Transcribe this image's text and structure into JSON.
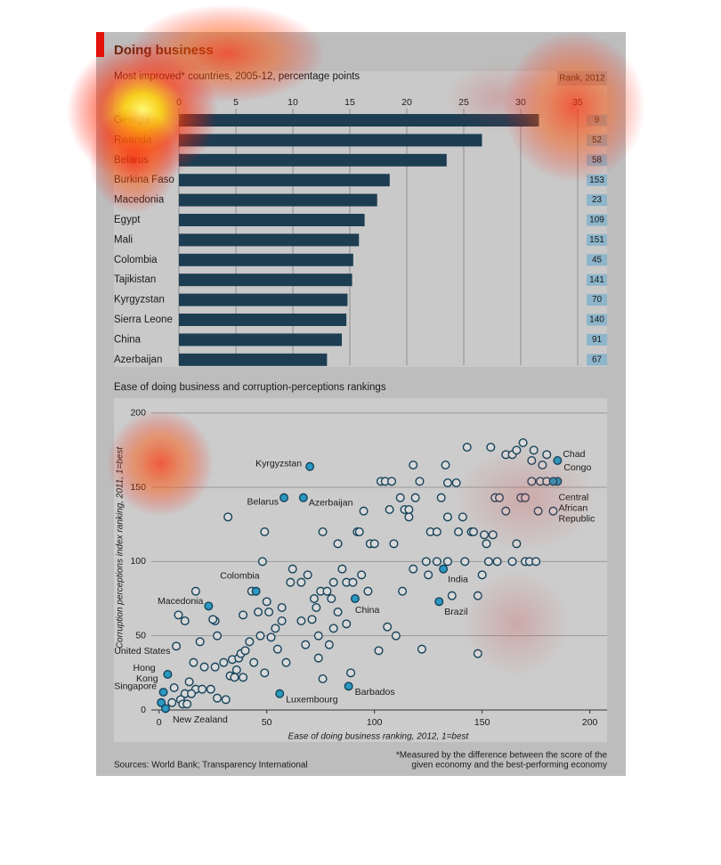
{
  "chart_data": [
    {
      "type": "bar",
      "horizontal": true,
      "title": "Doing business",
      "subtitle": "Most improved* countries, 2005-12, percentage points",
      "rank_header": "Rank, 2012",
      "categories": [
        "Georgia",
        "Rwanda",
        "Belarus",
        "Burkina Faso",
        "Macedonia",
        "Egypt",
        "Mali",
        "Colombia",
        "Tajikistan",
        "Kyrgyzstan",
        "Sierra Leone",
        "China",
        "Azerbaijan"
      ],
      "values": [
        31.6,
        26.6,
        23.5,
        18.5,
        17.4,
        16.3,
        15.8,
        15.3,
        15.2,
        14.8,
        14.7,
        14.3,
        13.0
      ],
      "ranks": [
        9,
        52,
        58,
        153,
        23,
        109,
        151,
        45,
        141,
        70,
        140,
        91,
        67
      ],
      "color": "#1c3d52",
      "rank_color": "#8db5cb",
      "xlim": [
        0,
        35
      ],
      "xticks": [
        0,
        5,
        10,
        15,
        20,
        25,
        30,
        35
      ],
      "grid": true
    },
    {
      "type": "scatter",
      "title": "Ease of doing business and corruption-perceptions rankings",
      "xlabel": "Ease of doing business ranking, 2012, 1=best",
      "ylabel": "Corruption perceptions index ranking, 2011, 1=best",
      "xlim": [
        -16,
        208
      ],
      "ylim": [
        -21,
        210
      ],
      "xticks": [
        0,
        50,
        100,
        150,
        200
      ],
      "yticks": [
        0,
        50,
        100,
        150,
        200
      ],
      "grid": true,
      "color": "#d9d9d9",
      "edge_color": "#16435a",
      "highlight_color": "#2a98c0",
      "x": [
        143,
        154,
        169,
        161,
        164,
        166,
        174,
        180,
        173,
        178,
        118,
        133,
        103,
        105,
        108,
        121,
        134,
        138,
        173,
        177,
        180,
        112,
        119,
        131,
        156,
        158,
        168,
        170,
        95,
        107,
        114,
        116,
        134,
        141,
        161,
        176,
        183,
        32,
        116,
        126,
        129,
        139,
        145,
        146,
        151,
        155,
        76,
        92,
        93,
        83,
        98,
        100,
        109,
        152,
        166,
        49,
        48,
        62,
        69,
        61,
        66,
        81,
        85,
        87,
        90,
        94,
        118,
        124,
        125,
        129,
        134,
        142,
        153,
        157,
        164,
        170,
        172,
        175,
        150,
        136,
        148,
        113,
        17,
        43,
        72,
        75,
        78,
        80,
        97,
        73,
        57,
        50,
        9,
        12,
        39,
        46,
        51,
        57,
        66,
        71,
        83,
        87,
        26,
        25,
        27,
        47,
        54,
        52,
        42,
        74,
        81,
        106,
        110,
        8,
        19,
        55,
        68,
        79,
        122,
        102,
        148,
        16,
        21,
        26,
        30,
        34,
        37,
        38,
        40,
        44,
        59,
        74,
        36,
        33,
        35,
        39,
        49,
        89,
        76,
        7,
        14,
        17,
        20,
        24,
        12,
        15,
        27,
        31,
        10,
        6,
        11,
        13
      ],
      "y": [
        177,
        177,
        180,
        172,
        172,
        175,
        175,
        172,
        168,
        165,
        165,
        165,
        154,
        154,
        154,
        154,
        153,
        153,
        154,
        154,
        154,
        143,
        143,
        143,
        143,
        143,
        143,
        143,
        134,
        135,
        135,
        135,
        130,
        130,
        134,
        134,
        134,
        130,
        130,
        120,
        120,
        120,
        120,
        120,
        118,
        118,
        120,
        120,
        120,
        112,
        112,
        112,
        112,
        112,
        112,
        120,
        100,
        95,
        91,
        86,
        86,
        86,
        95,
        86,
        86,
        91,
        95,
        100,
        91,
        100,
        100,
        100,
        100,
        100,
        100,
        100,
        100,
        100,
        91,
        77,
        77,
        80,
        80,
        80,
        75,
        80,
        80,
        75,
        80,
        69,
        69,
        73,
        64,
        60,
        64,
        66,
        66,
        60,
        60,
        61,
        66,
        58,
        60,
        61,
        50,
        50,
        55,
        49,
        46,
        50,
        55,
        56,
        50,
        43,
        46,
        41,
        44,
        44,
        41,
        40,
        38,
        32,
        29,
        29,
        32,
        34,
        35,
        38,
        40,
        32,
        32,
        35,
        27,
        23,
        22,
        22,
        25,
        25,
        21,
        15,
        19,
        14,
        14,
        14,
        11,
        11,
        8,
        7,
        7,
        5,
        4,
        4
      ],
      "labelled": {
        "labels": [
          "Kyrgyzstan",
          "Belarus",
          "Azerbaijan",
          "Colombia",
          "Macedonia",
          "China",
          "India",
          "Brazil",
          "Chad",
          "Congo",
          "Central African Republic",
          "United States",
          "Hong Kong",
          "Singapore",
          "New Zealand",
          "Luxembourg",
          "Barbados"
        ],
        "x": [
          70,
          58,
          67,
          45,
          23,
          91,
          132,
          130,
          185,
          185,
          183,
          4,
          2,
          1,
          3,
          56,
          88
        ],
        "y": [
          164,
          143,
          143,
          80,
          70,
          75,
          95,
          73,
          168,
          154,
          154,
          24,
          12,
          5,
          1,
          11,
          16
        ]
      }
    }
  ],
  "footer": {
    "source": "Sources: World Bank; Transparency International",
    "footnote": [
      "*Measured by the difference between the score of the",
      "given economy and the best-performing economy"
    ]
  }
}
